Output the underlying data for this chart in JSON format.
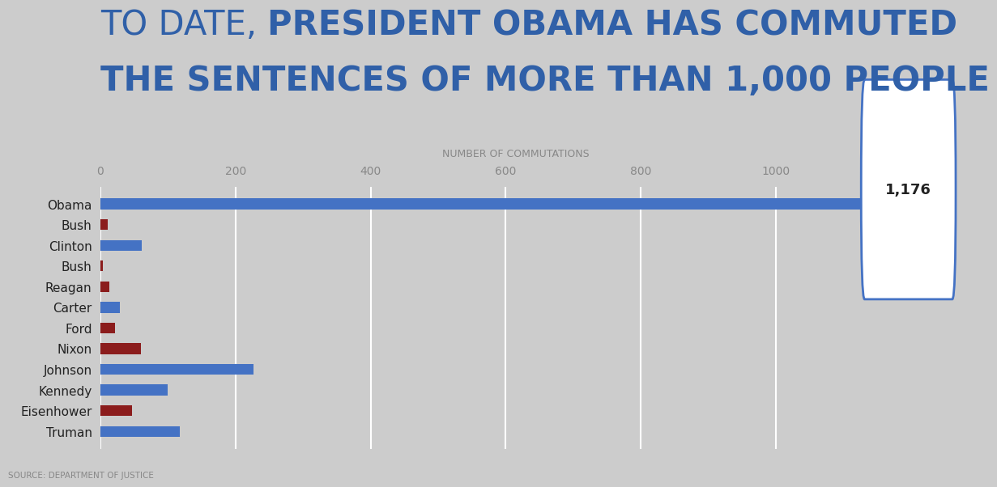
{
  "title_part1": "TO DATE, ",
  "title_part2": "PRESIDENT OBAMA HAS COMMUTED",
  "title_line2": "THE SENTENCES OF MORE THAN 1,000 PEOPLE",
  "xlabel": "NUMBER OF COMMUTATIONS",
  "source": "SOURCE: DEPARTMENT OF JUSTICE",
  "presidents": [
    "Obama",
    "Bush",
    "Clinton",
    "Bush",
    "Reagan",
    "Carter",
    "Ford",
    "Nixon",
    "Johnson",
    "Kennedy",
    "Eisenhower",
    "Truman"
  ],
  "values": [
    1176,
    11,
    61,
    3,
    13,
    29,
    22,
    60,
    226,
    100,
    47,
    118
  ],
  "colors": [
    "#4472C4",
    "#8B1C1C",
    "#4472C4",
    "#8B1C1C",
    "#8B1C1C",
    "#4472C4",
    "#8B1C1C",
    "#8B1C1C",
    "#4472C4",
    "#4472C4",
    "#8B1C1C",
    "#4472C4"
  ],
  "bg_color": "#CCCCCC",
  "bar_height": 0.52,
  "xlim_max": 1230,
  "xticks": [
    0,
    200,
    400,
    600,
    800,
    1000
  ],
  "callout_label": "1,176",
  "callout_bg": "#FFFFFF",
  "callout_border": "#4472C4",
  "callout_pointer": "#4472C4",
  "callout_text_color": "#222222",
  "title_color": "#3060A8",
  "title_fontsize": 30,
  "axis_label_fontsize": 9,
  "tick_fontsize": 10,
  "ytick_fontsize": 11,
  "source_fontsize": 7.5,
  "grid_color": "#FFFFFF",
  "text_color_dark": "#222222",
  "text_color_mid": "#888888"
}
